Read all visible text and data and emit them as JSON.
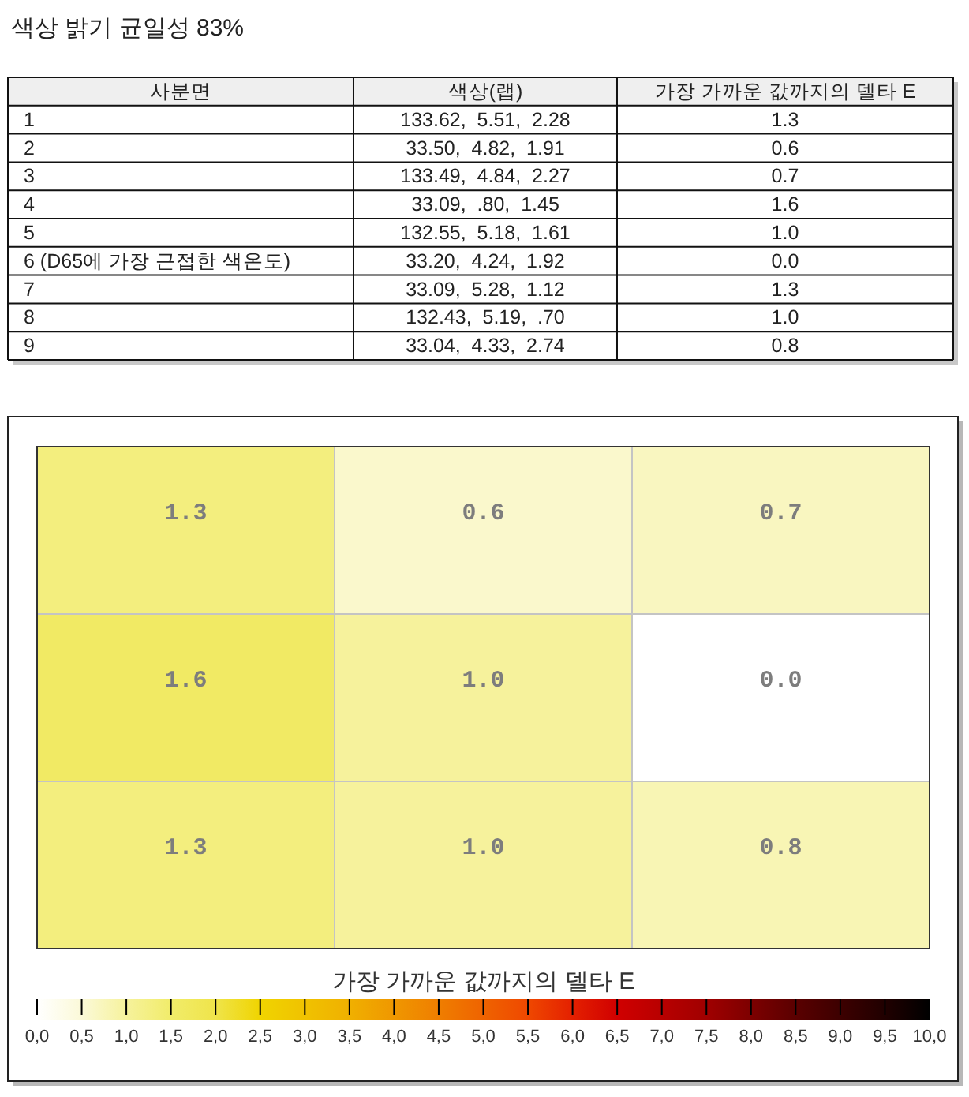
{
  "chart_data": [
    {
      "type": "other",
      "title": "색상 밝기 균일성 83%",
      "annotations": [
        "사분면",
        "색상(랩)",
        "가장 가까운 값까지의 델타 E",
        "1",
        "133.62,  5.51,  2.28",
        "1.3",
        "2",
        "33.50,  4.82,  1.91",
        "0.6",
        "3",
        "133.49,  4.84,  2.27",
        "0.7",
        "4",
        "33.09,  .80,  1.45",
        "1.6",
        "5",
        "132.55,  5.18,  1.61",
        "1.0",
        "6 (D65에 가장 근접한 색온도)",
        "33.20,  4.24,  1.92",
        "0.0",
        "7",
        "33.09,  5.28,  1.12",
        "1.3",
        "8",
        "132.43,  5.19,  .70",
        "1.0",
        "9",
        "33.04,  4.33,  2.74",
        "0.8"
      ]
    },
    {
      "type": "heatmap",
      "categories": [
        null,
        null,
        null
      ],
      "y_categories": [
        null,
        null,
        null
      ],
      "cells": [
        [
          1.3,
          0.6,
          0.7
        ],
        [
          1.6,
          1.0,
          0.0
        ],
        [
          1.3,
          1.0,
          0.8
        ]
      ],
      "cell_labels": [
        [
          "1.3",
          "0.6",
          "0.7"
        ],
        [
          "1.6",
          "1.0",
          "0.0"
        ],
        [
          "1.3",
          "1.0",
          "0.8"
        ]
      ],
      "grid": true,
      "clabel": "가장 가까운 값까지의 델타 E",
      "clim": [
        0,
        10
      ],
      "cticks": [
        {
          "value": 0,
          "label": "0,0"
        },
        {
          "value": 0.5,
          "label": "0,5"
        },
        {
          "value": 1,
          "label": "1,0"
        },
        {
          "value": 1.5,
          "label": "1,5"
        },
        {
          "value": 2,
          "label": "2,0"
        },
        {
          "value": 2.5,
          "label": "2,5"
        },
        {
          "value": 3,
          "label": "3,0"
        },
        {
          "value": 3.5,
          "label": "3,5"
        },
        {
          "value": 4,
          "label": "4,0"
        },
        {
          "value": 4.5,
          "label": "4,5"
        },
        {
          "value": 5,
          "label": "5,0"
        },
        {
          "value": 5.5,
          "label": "5,5"
        },
        {
          "value": 6,
          "label": "6,0"
        },
        {
          "value": 6.5,
          "label": "6,5"
        },
        {
          "value": 7,
          "label": "7,0"
        },
        {
          "value": 7.5,
          "label": "7,5"
        },
        {
          "value": 8,
          "label": "8,0"
        },
        {
          "value": 8.5,
          "label": "8,5"
        },
        {
          "value": 9,
          "label": "9,0"
        },
        {
          "value": 9.5,
          "label": "9,5"
        },
        {
          "value": 10,
          "label": "10,0"
        }
      ]
    }
  ]
}
